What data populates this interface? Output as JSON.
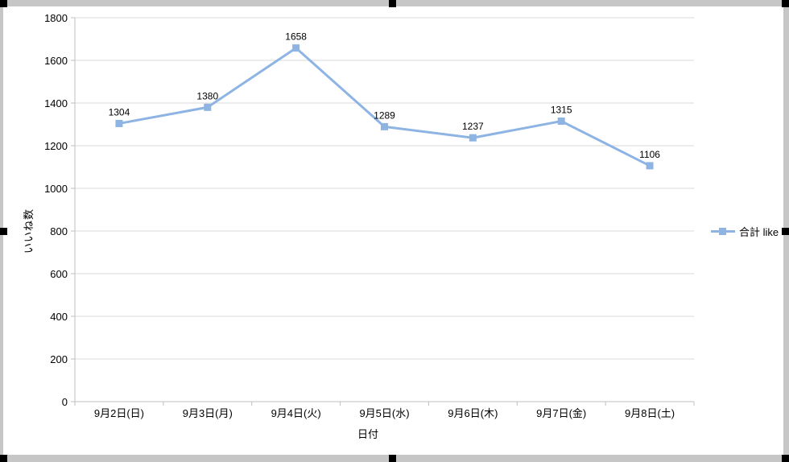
{
  "window": {
    "frame_color": "#c6c6c6",
    "handle_color": "#000000",
    "background": "#ffffff"
  },
  "chart_data": {
    "type": "line",
    "title": "",
    "categories": [
      "9月2日(日)",
      "9月3日(月)",
      "9月4日(火)",
      "9月5日(水)",
      "9月6日(木)",
      "9月7日(金)",
      "9月8日(土)"
    ],
    "series": [
      {
        "name": "合計 like",
        "values": [
          1304,
          1380,
          1658,
          1289,
          1237,
          1315,
          1106
        ],
        "color": "#8eb4e3"
      }
    ],
    "xlabel": "日付",
    "ylabel": "いいね数",
    "ylim": [
      0,
      1800
    ],
    "ytick_step": 200,
    "yticks": [
      0,
      200,
      400,
      600,
      800,
      1000,
      1200,
      1400,
      1600,
      1800
    ],
    "grid": true,
    "data_labels": true,
    "legend_position": "right",
    "marker": "square",
    "gridline_color": "#d9d9d9",
    "axis_color": "#bfbfbf",
    "label_color": "#000000"
  }
}
